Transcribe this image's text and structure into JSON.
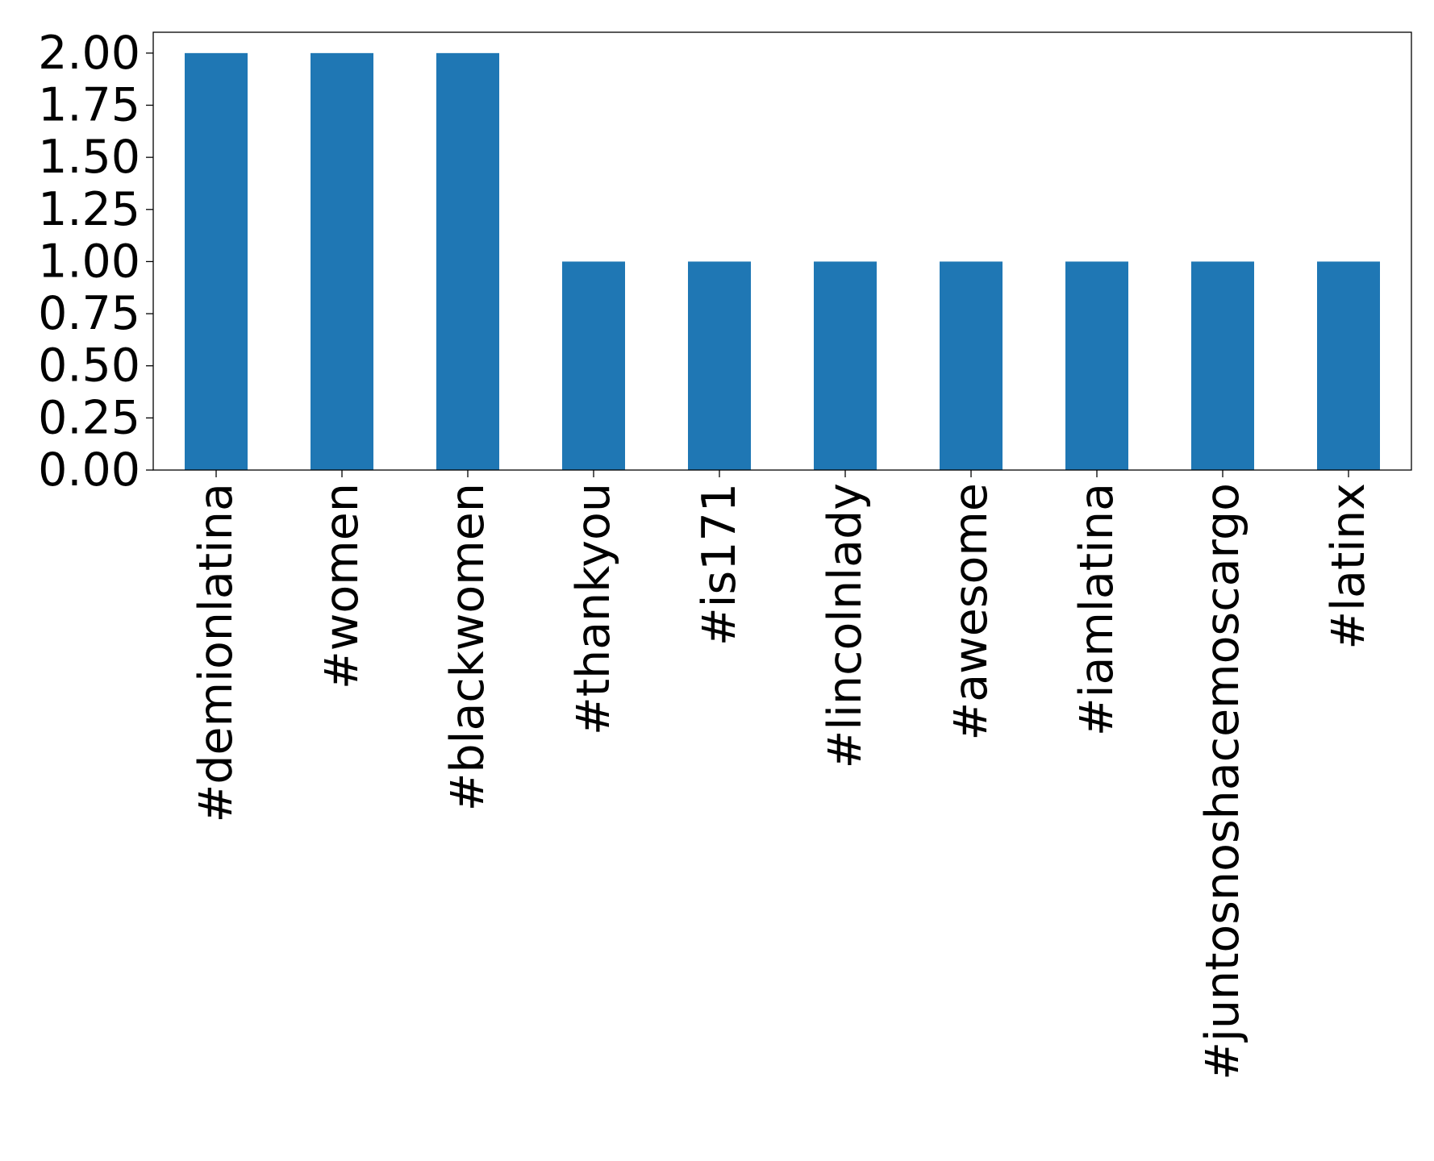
{
  "chart_data": {
    "type": "bar",
    "title": "",
    "xlabel": "",
    "ylabel": "",
    "categories": [
      "#demionlatina",
      "#women",
      "#blackwomen",
      "#thankyou",
      "#is171",
      "#lincolnlady",
      "#awesome",
      "#iamlatina",
      "#juntosnoshacemoscargo",
      "#latinx"
    ],
    "values": [
      2,
      2,
      2,
      1,
      1,
      1,
      1,
      1,
      1,
      1
    ],
    "ylim": [
      0,
      2.1
    ],
    "yticks": [
      0.0,
      0.25,
      0.5,
      0.75,
      1.0,
      1.25,
      1.5,
      1.75,
      2.0
    ],
    "ytick_labels": [
      "0.00",
      "0.25",
      "0.50",
      "0.75",
      "1.00",
      "1.25",
      "1.50",
      "1.75",
      "2.00"
    ],
    "bar_color": "#1f77b4",
    "grid": false,
    "legend": "none",
    "xtick_rotation": "vertical"
  }
}
